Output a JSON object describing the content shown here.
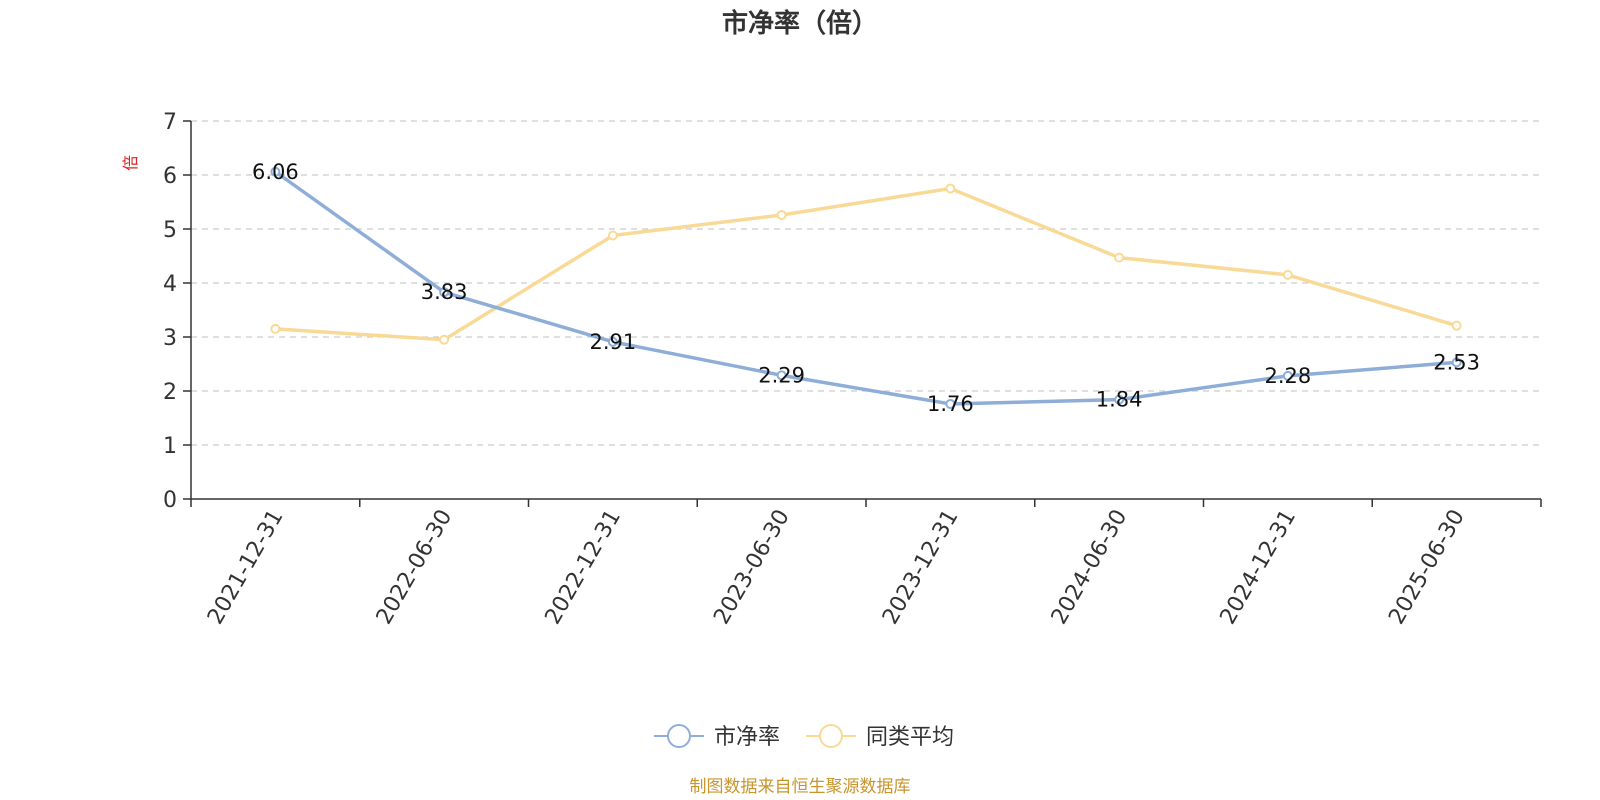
{
  "chart_data": {
    "type": "line",
    "title": "市净率（倍）",
    "ylabel": "倍",
    "ylim": [
      0,
      7
    ],
    "yticks": [
      0,
      1,
      2,
      3,
      4,
      5,
      6,
      7
    ],
    "categories": [
      "2021-12-31",
      "2022-06-30",
      "2022-12-31",
      "2023-06-30",
      "2023-12-31",
      "2024-06-30",
      "2024-12-31",
      "2025-06-30"
    ],
    "series": [
      {
        "name": "市净率",
        "values": [
          6.06,
          3.83,
          2.91,
          2.29,
          1.76,
          1.84,
          2.28,
          2.53
        ],
        "color": "#8eaed8",
        "labeled": true
      },
      {
        "name": "同类平均",
        "values": [
          3.15,
          2.95,
          4.88,
          5.26,
          5.75,
          4.47,
          4.15,
          3.21
        ],
        "color": "#f9d996",
        "labeled": false
      }
    ],
    "grid": true,
    "legend": "bottom-center",
    "source": "制图数据来自恒生聚源数据库"
  }
}
